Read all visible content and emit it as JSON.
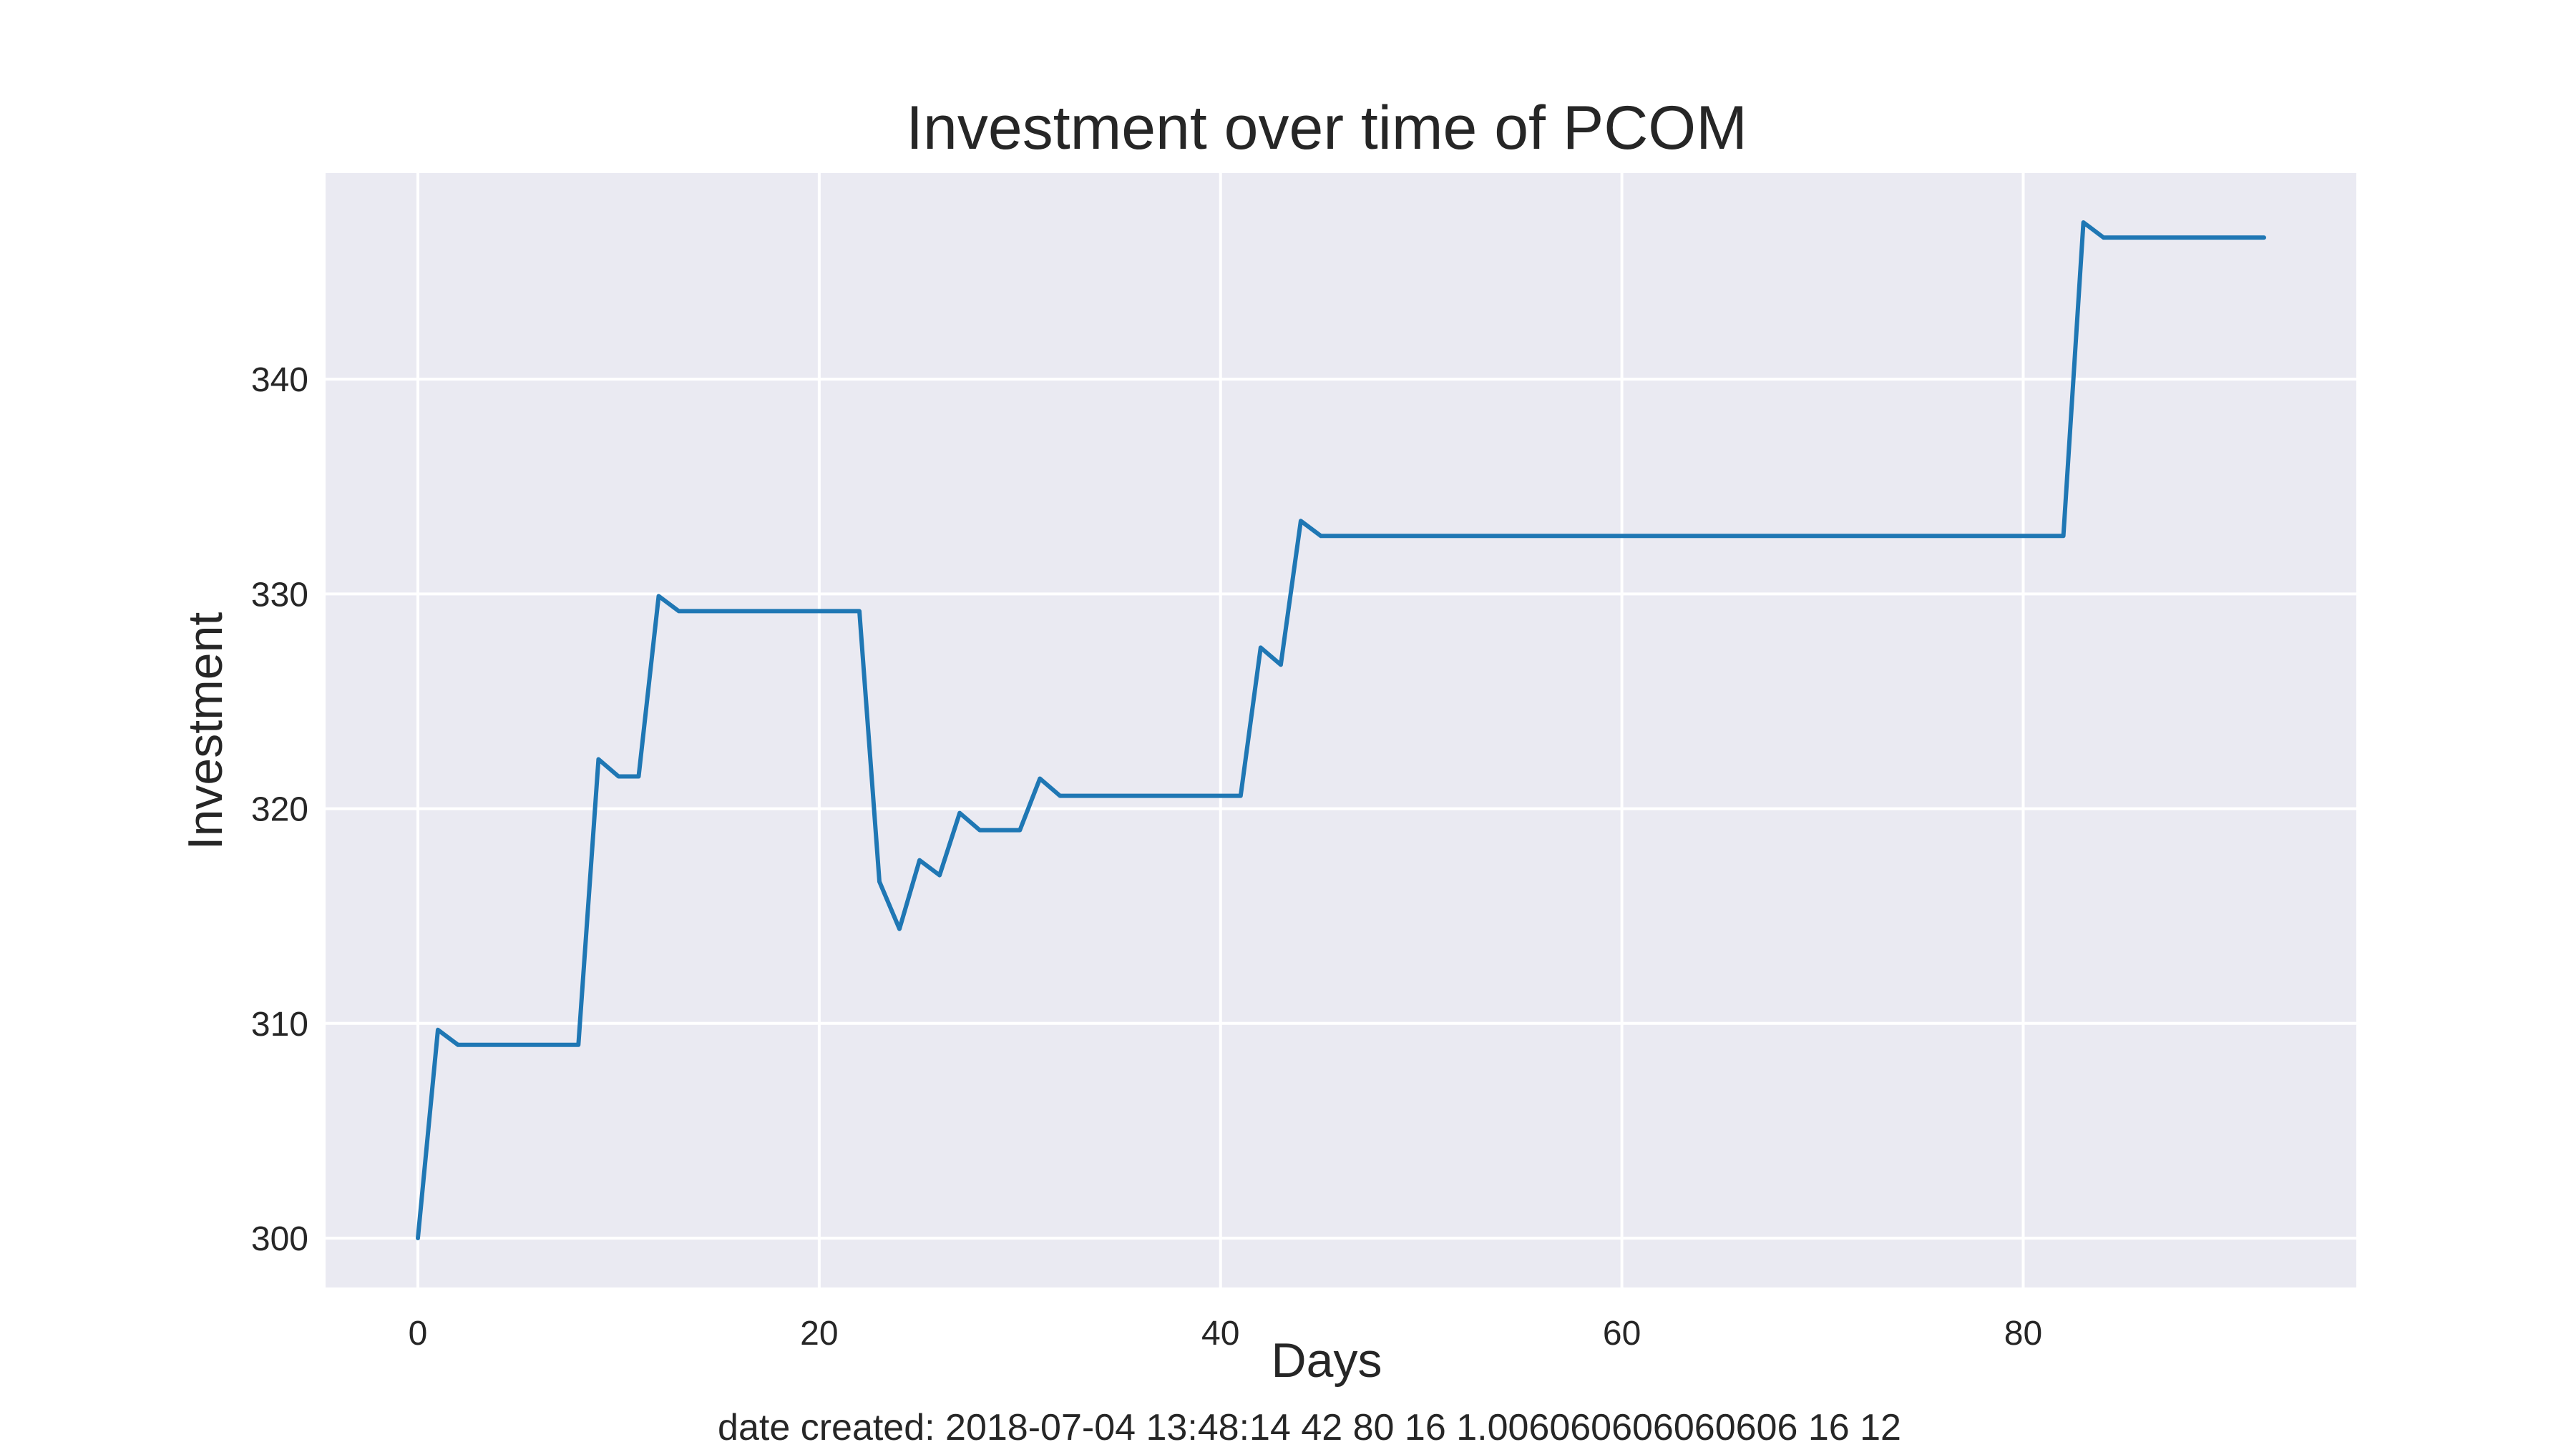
{
  "chart_data": {
    "type": "line",
    "title": "Investment over time of PCOM",
    "xlabel": "Days",
    "ylabel": "Investment",
    "xlim": [
      -4.6,
      96.6
    ],
    "ylim": [
      297.7,
      349.6
    ],
    "x_ticks": [
      0,
      20,
      40,
      60,
      80
    ],
    "y_ticks": [
      300,
      310,
      320,
      330,
      340
    ],
    "grid": true,
    "legend": "none",
    "colors": {
      "line": "#1f77b4",
      "plot_background": "#eaeaf2",
      "grid": "#ffffff",
      "text": "#262626"
    },
    "series": [
      {
        "x": [
          0,
          1,
          2,
          3,
          4,
          5,
          6,
          7,
          8,
          9,
          10,
          11,
          12,
          13,
          14,
          15,
          16,
          17,
          18,
          19,
          20,
          21,
          22,
          23,
          24,
          25,
          26,
          27,
          28,
          29,
          30,
          31,
          32,
          33,
          34,
          35,
          36,
          37,
          38,
          39,
          40,
          41,
          42,
          43,
          44,
          45,
          46,
          47,
          48,
          49,
          50,
          51,
          52,
          53,
          54,
          55,
          56,
          57,
          58,
          59,
          60,
          61,
          62,
          63,
          64,
          65,
          66,
          67,
          68,
          69,
          70,
          71,
          72,
          73,
          74,
          75,
          76,
          77,
          78,
          79,
          80,
          81,
          82,
          83,
          84,
          85,
          86,
          87,
          88,
          89,
          90,
          91,
          92
        ],
        "y": [
          300.0,
          309.7,
          309.0,
          309.0,
          309.0,
          309.0,
          309.0,
          309.0,
          309.0,
          322.3,
          321.5,
          321.5,
          329.9,
          329.2,
          329.2,
          329.2,
          329.2,
          329.2,
          329.2,
          329.2,
          329.2,
          329.2,
          329.2,
          316.6,
          314.4,
          317.6,
          316.9,
          319.8,
          319.0,
          319.0,
          319.0,
          321.4,
          320.6,
          320.6,
          320.6,
          320.6,
          320.6,
          320.6,
          320.6,
          320.6,
          320.6,
          320.6,
          327.5,
          326.7,
          333.4,
          332.7,
          332.7,
          332.7,
          332.7,
          332.7,
          332.7,
          332.7,
          332.7,
          332.7,
          332.7,
          332.7,
          332.7,
          332.7,
          332.7,
          332.7,
          332.7,
          332.7,
          332.7,
          332.7,
          332.7,
          332.7,
          332.7,
          332.7,
          332.7,
          332.7,
          332.7,
          332.7,
          332.7,
          332.7,
          332.7,
          332.7,
          332.7,
          332.7,
          332.7,
          332.7,
          332.7,
          332.7,
          332.7,
          347.3,
          346.6,
          346.6,
          346.6,
          346.6,
          346.6,
          346.6,
          346.6,
          346.6,
          346.6
        ]
      }
    ]
  },
  "footer": {
    "text": "date created: 2018-07-04 13:48:14 42 80 16 1.006060606060606 16 12"
  }
}
